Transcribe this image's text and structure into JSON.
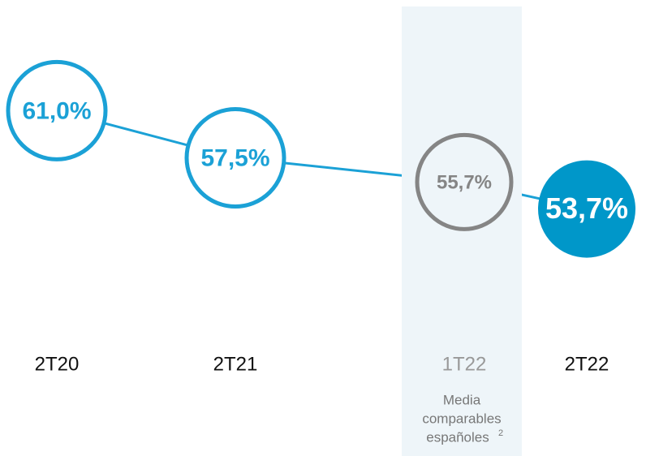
{
  "chart_data": {
    "type": "line",
    "categories": [
      "2T20",
      "2T21",
      "1T22",
      "2T22"
    ],
    "values": [
      61.0,
      57.5,
      55.7,
      53.7
    ],
    "value_labels": [
      "61,0%",
      "57,5%",
      "55,7%",
      "53,7%"
    ],
    "ylim": [
      50,
      65
    ],
    "colors": [
      "#1ba1d6",
      "#1ba1d6",
      "#858585",
      "#0097c9"
    ],
    "filled": [
      false,
      false,
      false,
      true
    ],
    "line_color": "#1ba1d6",
    "highlight_index": 2,
    "highlight_color": "#eef5f9",
    "annotation": {
      "lines": [
        "Media",
        "comparables",
        "españoles"
      ],
      "footnote": "2"
    }
  }
}
